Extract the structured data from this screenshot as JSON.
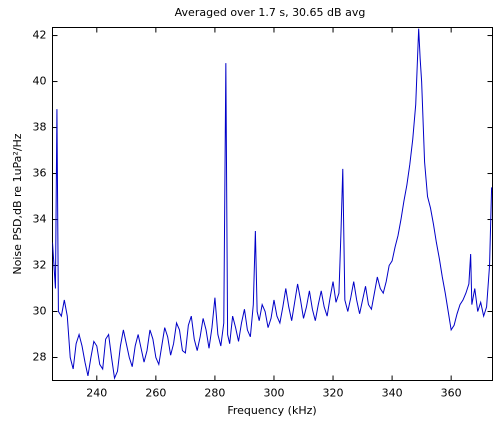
{
  "chart_data": {
    "type": "line",
    "title": "Averaged over 1.7 s, 30.65 dB avg",
    "x_label": "Frequency (kHz)",
    "y_label": "Noise PSD,dB re 1uPa²/Hz",
    "xlim": [
      225,
      374
    ],
    "ylim": [
      27,
      42.35
    ],
    "xticks": [
      240,
      260,
      280,
      300,
      320,
      340,
      360
    ],
    "yticks": [
      28,
      30,
      32,
      34,
      36,
      38,
      40,
      42
    ],
    "grid": false,
    "series": [
      {
        "color": "#0000c8",
        "x": [
          225,
          226,
          226.5,
          227,
          228,
          229,
          230,
          231,
          232,
          233,
          234,
          235,
          236,
          237,
          238,
          239,
          240,
          241,
          242,
          243,
          244,
          245,
          246,
          247,
          248,
          249,
          250,
          251,
          252,
          253,
          254,
          255,
          256,
          257,
          258,
          259,
          260,
          261,
          262,
          263,
          264,
          265,
          266,
          267,
          268,
          269,
          270,
          271,
          272,
          273,
          274,
          275,
          276,
          277,
          278,
          279,
          280,
          281,
          282,
          283,
          283.7,
          284.3,
          285,
          286,
          287,
          288,
          289,
          290,
          291,
          292,
          293,
          293.7,
          294.3,
          295,
          296,
          297,
          298,
          299,
          300,
          301,
          302,
          303,
          304,
          305,
          306,
          307,
          308,
          309,
          310,
          311,
          312,
          313,
          314,
          315,
          316,
          317,
          318,
          319,
          320,
          321,
          322,
          322.7,
          323.3,
          324,
          325,
          326,
          327,
          328,
          329,
          330,
          331,
          332,
          333,
          334,
          335,
          336,
          337,
          338,
          339,
          340,
          341,
          342,
          343,
          344,
          345,
          346,
          347,
          348,
          349,
          349.5,
          350,
          351,
          352,
          353,
          354,
          355,
          356,
          357,
          358,
          359,
          360,
          361,
          362,
          363,
          364,
          365,
          366,
          366.6,
          367,
          368,
          369,
          370,
          371,
          372,
          373,
          373.7
        ],
        "values": [
          33,
          31,
          38.8,
          30,
          29.8,
          30.5,
          29.8,
          28,
          27.5,
          28.6,
          29,
          28.5,
          27.8,
          27.2,
          28,
          28.7,
          28.5,
          27.7,
          27.5,
          28.8,
          29,
          28,
          27.1,
          27.4,
          28.5,
          29.2,
          28.6,
          28,
          27.6,
          28.5,
          29,
          28.4,
          27.8,
          28.3,
          29.2,
          28.8,
          28,
          27.7,
          28.5,
          29.3,
          28.9,
          28.1,
          28.6,
          29.5,
          29.2,
          28.3,
          28.2,
          29.4,
          29.8,
          28.8,
          28.3,
          28.9,
          29.7,
          29.2,
          28.4,
          29.3,
          30.6,
          29,
          28.5,
          29.5,
          40.8,
          29,
          28.6,
          29.8,
          29.3,
          28.7,
          29.5,
          30.1,
          29.2,
          28.9,
          30.3,
          33.5,
          30,
          29.6,
          30.3,
          30,
          29.3,
          29.7,
          30.5,
          29.8,
          29.5,
          30.2,
          31,
          30.2,
          29.6,
          30.4,
          31.2,
          30.5,
          29.7,
          30.2,
          30.9,
          30.1,
          29.6,
          30.3,
          30.9,
          30.2,
          29.8,
          30.6,
          31.3,
          30.4,
          30.8,
          33.5,
          36.2,
          30.5,
          30,
          30.6,
          31.3,
          30.5,
          29.9,
          30.5,
          31.1,
          30.3,
          30.1,
          30.8,
          31.5,
          31,
          30.8,
          31.3,
          32,
          32.2,
          32.8,
          33.3,
          34,
          34.8,
          35.5,
          36.4,
          37.5,
          39,
          42.3,
          41,
          40,
          36.5,
          35,
          34.5,
          33.8,
          33,
          32.3,
          31.5,
          30.8,
          30,
          29.2,
          29.4,
          29.9,
          30.3,
          30.5,
          30.8,
          31.2,
          32.5,
          30.3,
          31,
          30,
          30.4,
          29.8,
          30.2,
          32,
          35.4
        ]
      }
    ]
  }
}
